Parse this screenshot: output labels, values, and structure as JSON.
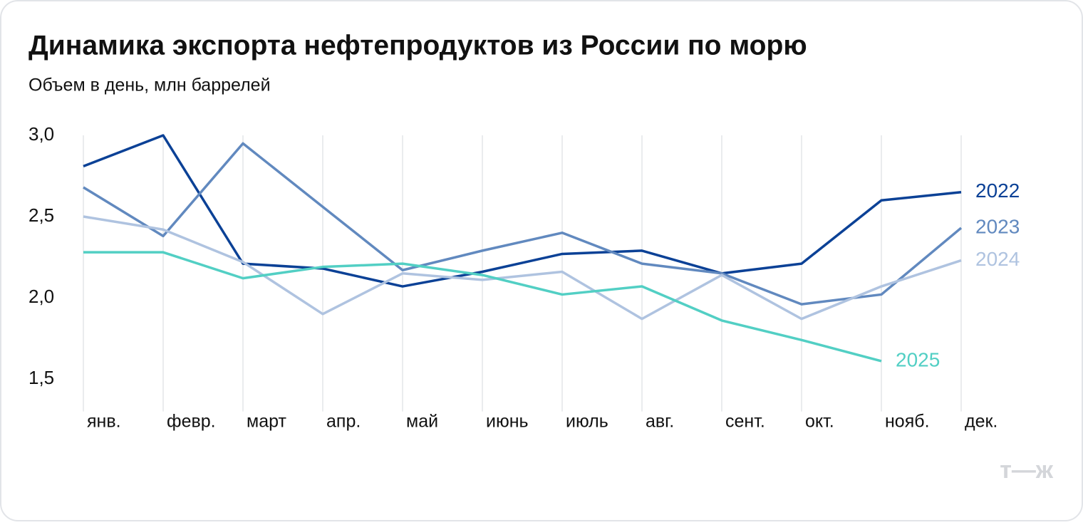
{
  "chart_data": {
    "type": "line",
    "title": "Динамика экспорта нефтепродуктов из России по морю",
    "subtitle": "Объем в день, млн баррелей",
    "categories": [
      "янв.",
      "февр.",
      "март",
      "апр.",
      "май",
      "июнь",
      "июль",
      "авг.",
      "сент.",
      "окт.",
      "нояб.",
      "дек."
    ],
    "series": [
      {
        "name": "2022",
        "color": "#0b4196",
        "values": [
          2.81,
          3.0,
          2.21,
          2.18,
          2.07,
          2.16,
          2.27,
          2.29,
          2.15,
          2.21,
          2.6,
          2.65
        ]
      },
      {
        "name": "2023",
        "color": "#6189bf",
        "values": [
          2.68,
          2.38,
          2.95,
          2.56,
          2.17,
          2.29,
          2.4,
          2.21,
          2.15,
          1.96,
          2.02,
          2.43
        ]
      },
      {
        "name": "2024",
        "color": "#afc3e0",
        "values": [
          2.5,
          2.42,
          2.22,
          1.9,
          2.15,
          2.11,
          2.16,
          1.87,
          2.14,
          1.87,
          2.07,
          2.23
        ]
      },
      {
        "name": "2025",
        "color": "#52cfc4",
        "values": [
          2.28,
          2.28,
          2.12,
          2.19,
          2.21,
          2.14,
          2.02,
          2.07,
          1.86,
          1.74,
          1.61,
          null
        ]
      }
    ],
    "ylim": [
      1.3,
      3.0
    ],
    "yticks": [
      {
        "value": 1.5,
        "label": "1,5"
      },
      {
        "value": 2.0,
        "label": "2,0"
      },
      {
        "value": 2.5,
        "label": "2,5"
      },
      {
        "value": 3.0,
        "label": "3,0"
      }
    ],
    "grid": true,
    "logo": "т—ж"
  }
}
